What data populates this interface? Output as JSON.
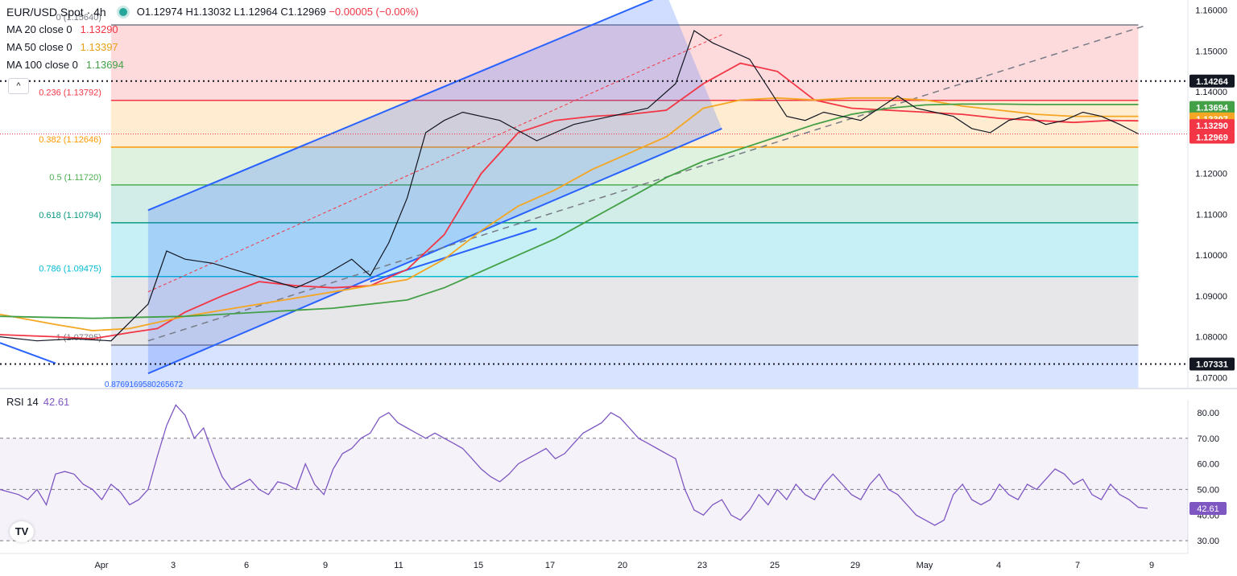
{
  "header": {
    "symbol": "EUR/USD Spot · 4h",
    "open": "O1.12974",
    "high": "H1.13032",
    "low": "L1.12964",
    "close": "C1.12969",
    "change": "−0.00005 (−0.00%)"
  },
  "indicators": [
    {
      "label": "MA 20 close 0",
      "value": "1.13290",
      "color": "#f23645"
    },
    {
      "label": "MA 50 close 0",
      "value": "1.13397",
      "color": "#f5a623"
    },
    {
      "label": "MA 100 close 0",
      "value": "1.13694",
      "color": "#43a047"
    }
  ],
  "collapse_label": "^",
  "logo_text": "TV",
  "rsi": {
    "label": "RSI 14",
    "value": "42.61",
    "color": "#7e57c2"
  },
  "chart_data": [
    {
      "type": "line",
      "title": "EUR/USD Spot · 4h",
      "ylim": [
        1.0675,
        1.1625
      ],
      "yticks": [
        "1.16000",
        "1.15000",
        "1.14000",
        "1.13000",
        "1.12000",
        "1.11000",
        "1.10000",
        "1.09000",
        "1.08000",
        "1.07000"
      ],
      "xticks": [
        "Apr",
        "3",
        "6",
        "9",
        "11",
        "15",
        "17",
        "20",
        "23",
        "25",
        "29",
        "May",
        "4",
        "7",
        "9"
      ],
      "fibonacci": [
        {
          "label": "0 (1.15640)",
          "level": 1.1564,
          "color": "#787b86"
        },
        {
          "label": "0.236 (1.13792)",
          "level": 1.13792,
          "color": "#f23645"
        },
        {
          "label": "0.382 (1.12646)",
          "level": 1.12646,
          "color": "#ff9800"
        },
        {
          "label": "0.5 (1.11720)",
          "level": 1.1172,
          "color": "#4caf50"
        },
        {
          "label": "0.618 (1.10794)",
          "level": 1.10794,
          "color": "#089981"
        },
        {
          "label": "0.786 (1.09475)",
          "level": 1.09475,
          "color": "#00bcd4"
        },
        {
          "label": "1 (1.07795)",
          "level": 1.07795,
          "color": "#787b86"
        }
      ],
      "fib_extension_label": "0.8769169580265672",
      "horizontal_levels": [
        {
          "label": "1.14264",
          "level": 1.14264
        },
        {
          "label": "1.07331",
          "level": 1.07331
        }
      ],
      "price_tags": [
        {
          "label": "1.14264",
          "color": "#131722"
        },
        {
          "label": "1.13694",
          "color": "#43a047"
        },
        {
          "label": "1.13397",
          "color": "#f5a623"
        },
        {
          "label": "1.13290",
          "color": "#f23645"
        },
        {
          "label": "1.12969",
          "color": "#f23645"
        },
        {
          "label": "1.07331",
          "color": "#131722"
        }
      ],
      "series": [
        {
          "name": "MA 20 close 0",
          "color": "#f23645",
          "points": [
            [
              0,
              1.0805
            ],
            [
              6,
              1.08
            ],
            [
              10,
              1.0795
            ],
            [
              14,
              1.081
            ],
            [
              17,
              1.082
            ],
            [
              20,
              1.086
            ],
            [
              24,
              1.09
            ],
            [
              28,
              1.0935
            ],
            [
              32,
              1.0925
            ],
            [
              36,
              1.092
            ],
            [
              40,
              1.0925
            ],
            [
              44,
              1.0965
            ],
            [
              48,
              1.105
            ],
            [
              52,
              1.12
            ],
            [
              56,
              1.13
            ],
            [
              60,
              1.133
            ],
            [
              64,
              1.134
            ],
            [
              68,
              1.1345
            ],
            [
              72,
              1.1355
            ],
            [
              76,
              1.142
            ],
            [
              80,
              1.147
            ],
            [
              84,
              1.145
            ],
            [
              88,
              1.138
            ],
            [
              92,
              1.136
            ],
            [
              96,
              1.1355
            ],
            [
              100,
              1.135
            ],
            [
              104,
              1.1345
            ],
            [
              108,
              1.1335
            ],
            [
              112,
              1.133
            ],
            [
              116,
              1.1325
            ],
            [
              120,
              1.133
            ],
            [
              123,
              1.1329
            ]
          ]
        },
        {
          "name": "MA 50 close 0",
          "color": "#f5a623",
          "points": [
            [
              0,
              1.0855
            ],
            [
              6,
              1.083
            ],
            [
              10,
              1.0815
            ],
            [
              14,
              1.082
            ],
            [
              20,
              1.085
            ],
            [
              28,
              1.088
            ],
            [
              36,
              1.091
            ],
            [
              44,
              1.094
            ],
            [
              48,
              1.099
            ],
            [
              52,
              1.106
            ],
            [
              56,
              1.112
            ],
            [
              60,
              1.116
            ],
            [
              64,
              1.121
            ],
            [
              68,
              1.125
            ],
            [
              72,
              1.129
            ],
            [
              76,
              1.136
            ],
            [
              80,
              1.138
            ],
            [
              84,
              1.1385
            ],
            [
              88,
              1.138
            ],
            [
              92,
              1.1385
            ],
            [
              96,
              1.1385
            ],
            [
              100,
              1.138
            ],
            [
              104,
              1.1365
            ],
            [
              108,
              1.1355
            ],
            [
              112,
              1.1345
            ],
            [
              116,
              1.134
            ],
            [
              120,
              1.134
            ],
            [
              123,
              1.134
            ]
          ]
        },
        {
          "name": "MA 100 close 0",
          "color": "#43a047",
          "points": [
            [
              0,
              1.085
            ],
            [
              10,
              1.0845
            ],
            [
              20,
              1.085
            ],
            [
              28,
              1.086
            ],
            [
              36,
              1.087
            ],
            [
              44,
              1.089
            ],
            [
              48,
              1.092
            ],
            [
              52,
              1.096
            ],
            [
              56,
              1.1
            ],
            [
              60,
              1.104
            ],
            [
              64,
              1.109
            ],
            [
              68,
              1.114
            ],
            [
              72,
              1.119
            ],
            [
              76,
              1.123
            ],
            [
              80,
              1.126
            ],
            [
              84,
              1.129
            ],
            [
              88,
              1.132
            ],
            [
              92,
              1.1345
            ],
            [
              96,
              1.136
            ],
            [
              100,
              1.1368
            ],
            [
              104,
              1.137
            ],
            [
              108,
              1.137
            ],
            [
              112,
              1.1369
            ],
            [
              116,
              1.1369
            ],
            [
              120,
              1.1369
            ],
            [
              123,
              1.1369
            ]
          ]
        },
        {
          "name": "EUR/USD",
          "color": "#131722",
          "points": [
            [
              0,
              1.08
            ],
            [
              4,
              1.079
            ],
            [
              8,
              1.0795
            ],
            [
              12,
              1.079
            ],
            [
              16,
              1.088
            ],
            [
              18,
              1.101
            ],
            [
              20,
              1.099
            ],
            [
              23,
              1.098
            ],
            [
              26,
              1.096
            ],
            [
              29,
              1.094
            ],
            [
              32,
              1.092
            ],
            [
              35,
              1.095
            ],
            [
              38,
              1.099
            ],
            [
              40,
              1.095
            ],
            [
              42,
              1.103
            ],
            [
              44,
              1.114
            ],
            [
              46,
              1.13
            ],
            [
              48,
              1.133
            ],
            [
              50,
              1.135
            ],
            [
              54,
              1.133
            ],
            [
              58,
              1.128
            ],
            [
              62,
              1.132
            ],
            [
              66,
              1.134
            ],
            [
              70,
              1.136
            ],
            [
              73,
              1.142
            ],
            [
              75,
              1.155
            ],
            [
              77,
              1.152
            ],
            [
              79,
              1.15
            ],
            [
              81,
              1.148
            ],
            [
              83,
              1.141
            ],
            [
              85,
              1.134
            ],
            [
              87,
              1.133
            ],
            [
              89,
              1.135
            ],
            [
              91,
              1.134
            ],
            [
              93,
              1.133
            ],
            [
              95,
              1.136
            ],
            [
              97,
              1.139
            ],
            [
              99,
              1.136
            ],
            [
              101,
              1.135
            ],
            [
              103,
              1.134
            ],
            [
              105,
              1.131
            ],
            [
              107,
              1.13
            ],
            [
              109,
              1.133
            ],
            [
              111,
              1.134
            ],
            [
              113,
              1.132
            ],
            [
              115,
              1.133
            ],
            [
              117,
              1.135
            ],
            [
              119,
              1.134
            ],
            [
              121,
              1.132
            ],
            [
              123,
              1.1297
            ]
          ]
        }
      ],
      "channel": {
        "upper": [
          [
            16,
            1.111
          ],
          [
            72,
            1.164
          ]
        ],
        "lower": [
          [
            16,
            1.071
          ],
          [
            78,
            1.131
          ]
        ],
        "mid": [
          [
            16,
            1.091
          ],
          [
            78,
            1.154
          ]
        ]
      },
      "trendline": [
        [
          16,
          1.079
        ],
        [
          124,
          1.1564
        ]
      ]
    },
    {
      "type": "line",
      "title": "RSI 14",
      "ylim": [
        25,
        85
      ],
      "yticks": [
        "80.00",
        "70.00",
        "60.00",
        "50.00",
        "40.00",
        "30.00"
      ],
      "bands": [
        70,
        50,
        30
      ],
      "series": [
        {
          "name": "RSI 14",
          "color": "#7e57c2",
          "values": [
            50,
            49,
            48,
            46,
            50,
            44,
            56,
            57,
            56,
            52,
            50,
            46,
            52,
            49,
            44,
            46,
            50,
            63,
            75,
            83,
            79,
            70,
            74,
            64,
            55,
            50,
            52,
            54,
            50,
            48,
            53,
            52,
            50,
            60,
            52,
            48,
            58,
            64,
            66,
            70,
            72,
            78,
            80,
            76,
            74,
            72,
            70,
            72,
            70,
            68,
            66,
            62,
            58,
            55,
            53,
            56,
            60,
            62,
            64,
            66,
            62,
            64,
            68,
            72,
            74,
            76,
            80,
            78,
            74,
            70,
            68,
            66,
            64,
            62,
            50,
            42,
            40,
            44,
            46,
            40,
            38,
            42,
            48,
            44,
            50,
            46,
            52,
            48,
            46,
            52,
            56,
            52,
            48,
            46,
            52,
            56,
            50,
            48,
            44,
            40,
            38,
            36,
            38,
            48,
            52,
            46,
            44,
            46,
            52,
            48,
            46,
            52,
            50,
            54,
            58,
            56,
            52,
            54,
            48,
            46,
            52,
            48,
            46,
            43,
            42.61
          ]
        }
      ]
    }
  ]
}
